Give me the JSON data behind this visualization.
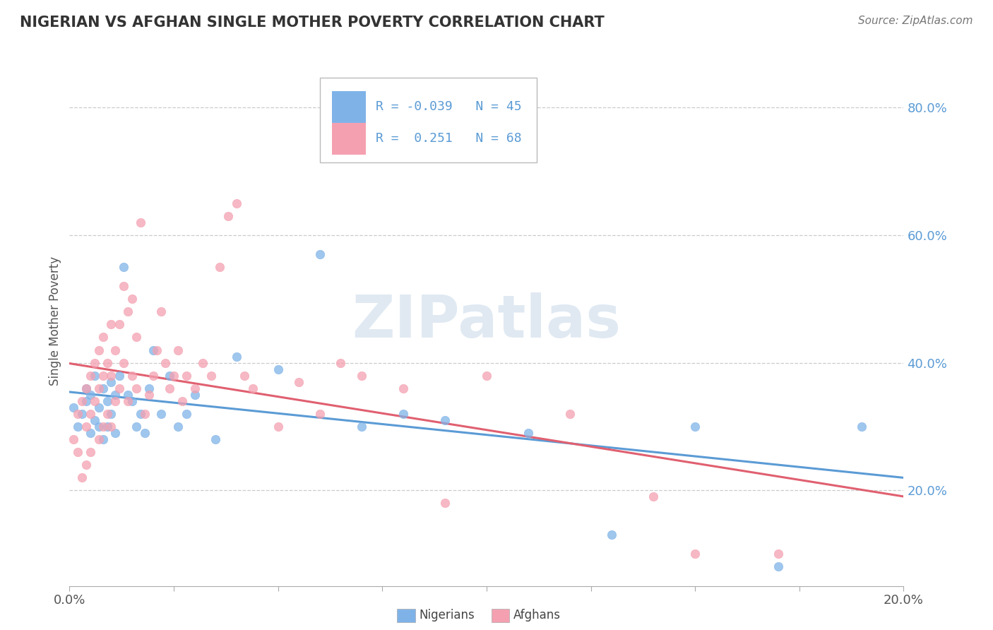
{
  "title": "NIGERIAN VS AFGHAN SINGLE MOTHER POVERTY CORRELATION CHART",
  "source": "Source: ZipAtlas.com",
  "ylabel": "Single Mother Poverty",
  "yticks_labels": [
    "20.0%",
    "40.0%",
    "60.0%",
    "80.0%"
  ],
  "ytick_vals": [
    0.2,
    0.4,
    0.6,
    0.8
  ],
  "xrange": [
    0.0,
    0.2
  ],
  "yrange": [
    0.05,
    0.88
  ],
  "legend_box": {
    "nigerian": {
      "R": -0.039,
      "N": 45
    },
    "afghan": {
      "R": 0.251,
      "N": 68
    }
  },
  "nigerian_color": "#7fb3e8",
  "afghan_color": "#f4a0b0",
  "nigerian_line_color": "#5b9bd5",
  "afghan_line_color": "#e06070",
  "watermark": "ZIPatlas",
  "watermark_color": "#c8d8e8",
  "nigerian_x": [
    0.001,
    0.002,
    0.003,
    0.004,
    0.004,
    0.005,
    0.005,
    0.006,
    0.006,
    0.007,
    0.007,
    0.008,
    0.008,
    0.009,
    0.009,
    0.01,
    0.01,
    0.011,
    0.011,
    0.012,
    0.013,
    0.014,
    0.015,
    0.016,
    0.017,
    0.018,
    0.019,
    0.02,
    0.022,
    0.024,
    0.026,
    0.028,
    0.03,
    0.035,
    0.04,
    0.05,
    0.06,
    0.07,
    0.08,
    0.09,
    0.11,
    0.13,
    0.15,
    0.17,
    0.19
  ],
  "nigerian_y": [
    0.33,
    0.3,
    0.32,
    0.34,
    0.36,
    0.29,
    0.35,
    0.31,
    0.38,
    0.3,
    0.33,
    0.36,
    0.28,
    0.34,
    0.3,
    0.32,
    0.37,
    0.35,
    0.29,
    0.38,
    0.55,
    0.35,
    0.34,
    0.3,
    0.32,
    0.29,
    0.36,
    0.42,
    0.32,
    0.38,
    0.3,
    0.32,
    0.35,
    0.28,
    0.41,
    0.39,
    0.57,
    0.3,
    0.32,
    0.31,
    0.29,
    0.13,
    0.3,
    0.08,
    0.3
  ],
  "afghan_x": [
    0.001,
    0.002,
    0.002,
    0.003,
    0.003,
    0.004,
    0.004,
    0.004,
    0.005,
    0.005,
    0.005,
    0.006,
    0.006,
    0.007,
    0.007,
    0.007,
    0.008,
    0.008,
    0.008,
    0.009,
    0.009,
    0.01,
    0.01,
    0.01,
    0.011,
    0.011,
    0.012,
    0.012,
    0.013,
    0.013,
    0.014,
    0.014,
    0.015,
    0.015,
    0.016,
    0.016,
    0.017,
    0.018,
    0.019,
    0.02,
    0.021,
    0.022,
    0.023,
    0.024,
    0.025,
    0.026,
    0.027,
    0.028,
    0.03,
    0.032,
    0.034,
    0.036,
    0.038,
    0.04,
    0.042,
    0.044,
    0.05,
    0.055,
    0.06,
    0.065,
    0.07,
    0.08,
    0.09,
    0.1,
    0.12,
    0.14,
    0.15,
    0.17
  ],
  "afghan_y": [
    0.28,
    0.32,
    0.26,
    0.34,
    0.22,
    0.36,
    0.3,
    0.24,
    0.38,
    0.32,
    0.26,
    0.4,
    0.34,
    0.42,
    0.36,
    0.28,
    0.44,
    0.38,
    0.3,
    0.4,
    0.32,
    0.46,
    0.38,
    0.3,
    0.42,
    0.34,
    0.46,
    0.36,
    0.52,
    0.4,
    0.48,
    0.34,
    0.5,
    0.38,
    0.44,
    0.36,
    0.62,
    0.32,
    0.35,
    0.38,
    0.42,
    0.48,
    0.4,
    0.36,
    0.38,
    0.42,
    0.34,
    0.38,
    0.36,
    0.4,
    0.38,
    0.55,
    0.63,
    0.65,
    0.38,
    0.36,
    0.3,
    0.37,
    0.32,
    0.4,
    0.38,
    0.36,
    0.18,
    0.38,
    0.32,
    0.19,
    0.1,
    0.1
  ]
}
